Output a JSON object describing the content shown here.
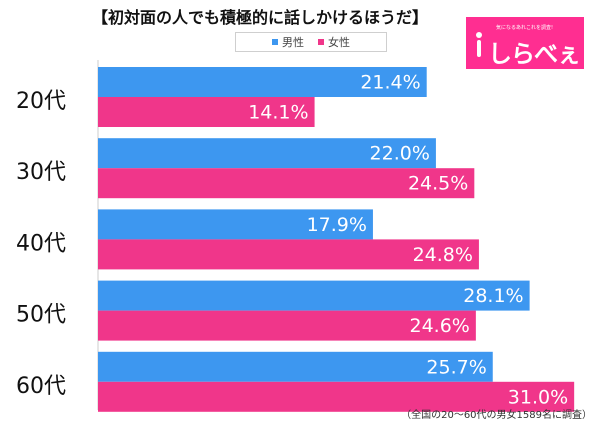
{
  "title": "【初対面の人でも積極的に話しかけるほうだ】",
  "logo": {
    "name": "しらべぇ",
    "tagline": "気になるあれこれを調査!"
  },
  "footnote": "（全国の20～60代の男女1589名に調査）",
  "colors": {
    "male": "#3d97f0",
    "female": "#f0368a"
  },
  "chart_data": {
    "type": "bar",
    "orientation": "horizontal",
    "categories": [
      "20代",
      "30代",
      "40代",
      "50代",
      "60代"
    ],
    "series": [
      {
        "name": "男性",
        "values": [
          21.4,
          22.0,
          17.9,
          28.1,
          25.7
        ]
      },
      {
        "name": "女性",
        "values": [
          14.1,
          24.5,
          24.8,
          24.6,
          31.0
        ]
      }
    ],
    "value_suffix": "%",
    "xlim": [
      0,
      35
    ],
    "grid": false,
    "legend_position": "top"
  }
}
